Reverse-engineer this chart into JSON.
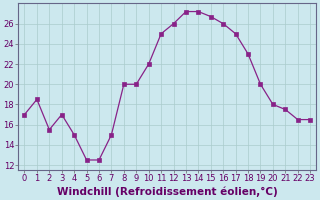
{
  "x": [
    0,
    1,
    2,
    3,
    4,
    5,
    6,
    7,
    8,
    9,
    10,
    11,
    12,
    13,
    14,
    15,
    16,
    17,
    18,
    19,
    20,
    21,
    22,
    23
  ],
  "y": [
    17,
    18.5,
    15.5,
    17,
    15,
    12.5,
    12.5,
    15,
    20,
    20,
    22,
    25,
    26,
    27.2,
    27.2,
    26.7,
    26,
    25,
    23,
    20,
    18,
    17.5,
    16.5,
    16.5
  ],
  "line_color": "#882288",
  "marker": "s",
  "marker_size": 2.5,
  "bg_color": "#cce8ee",
  "grid_color": "#aacccc",
  "xlabel": "Windchill (Refroidissement éolien,°C)",
  "xlabel_fontsize": 7.5,
  "ylim": [
    11.5,
    28
  ],
  "xlim": [
    -0.5,
    23.5
  ],
  "yticks": [
    12,
    14,
    16,
    18,
    20,
    22,
    24,
    26
  ],
  "xticks": [
    0,
    1,
    2,
    3,
    4,
    5,
    6,
    7,
    8,
    9,
    10,
    11,
    12,
    13,
    14,
    15,
    16,
    17,
    18,
    19,
    20,
    21,
    22,
    23
  ],
  "tick_fontsize": 6,
  "label_color": "#660066"
}
